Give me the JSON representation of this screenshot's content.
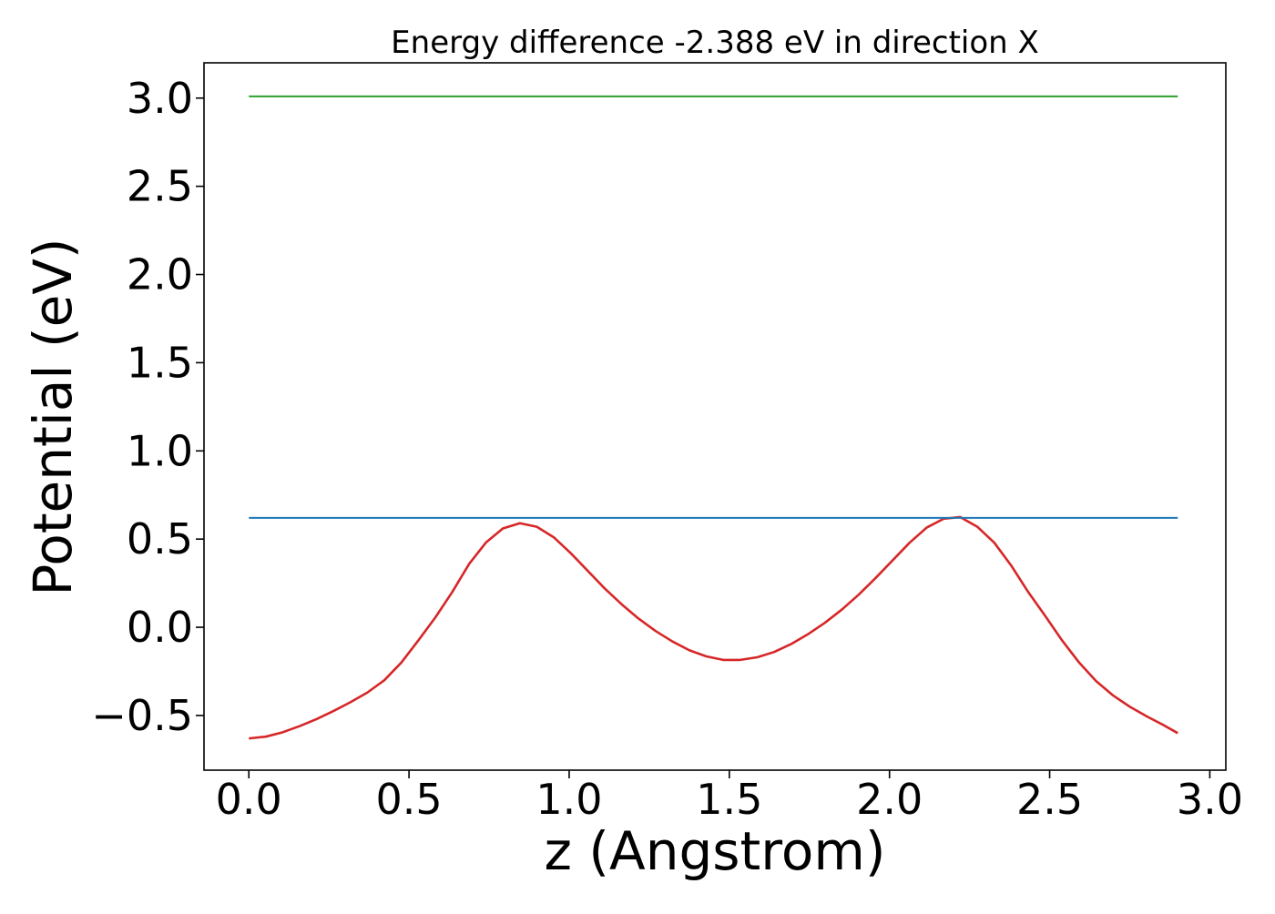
{
  "chart_data": {
    "type": "line",
    "title": "Energy difference -2.388 eV in direction X",
    "xlabel": "z (Angstrom)",
    "ylabel": "Potential (eV)",
    "xlim": [
      -0.14,
      3.05
    ],
    "ylim": [
      -0.81,
      3.2
    ],
    "xticks": [
      0.0,
      0.5,
      1.0,
      1.5,
      2.0,
      2.5,
      3.0
    ],
    "xtick_labels": [
      "0.0",
      "0.5",
      "1.0",
      "1.5",
      "2.0",
      "2.5",
      "3.0"
    ],
    "yticks": [
      -0.5,
      0.0,
      0.5,
      1.0,
      1.5,
      2.0,
      2.5,
      3.0
    ],
    "ytick_labels": [
      "−0.5",
      "0.0",
      "0.5",
      "1.0",
      "1.5",
      "2.0",
      "2.5",
      "3.0"
    ],
    "grid": false,
    "series": [
      {
        "color": "#d62728",
        "x": [
          0.0,
          0.053,
          0.106,
          0.159,
          0.212,
          0.264,
          0.317,
          0.37,
          0.423,
          0.476,
          0.529,
          0.582,
          0.635,
          0.688,
          0.74,
          0.793,
          0.846,
          0.899,
          0.952,
          1.005,
          1.058,
          1.111,
          1.164,
          1.216,
          1.269,
          1.322,
          1.375,
          1.428,
          1.481,
          1.534,
          1.587,
          1.64,
          1.693,
          1.745,
          1.798,
          1.851,
          1.904,
          1.957,
          2.01,
          2.063,
          2.116,
          2.169,
          2.221,
          2.274,
          2.327,
          2.38,
          2.433,
          2.486,
          2.539,
          2.592,
          2.645,
          2.697,
          2.75,
          2.803,
          2.856,
          2.9
        ],
        "y": [
          -0.63,
          -0.62,
          -0.595,
          -0.56,
          -0.52,
          -0.475,
          -0.425,
          -0.37,
          -0.3,
          -0.2,
          -0.075,
          0.055,
          0.2,
          0.36,
          0.48,
          0.56,
          0.59,
          0.57,
          0.51,
          0.42,
          0.32,
          0.22,
          0.13,
          0.05,
          -0.02,
          -0.08,
          -0.13,
          -0.165,
          -0.185,
          -0.185,
          -0.17,
          -0.14,
          -0.095,
          -0.04,
          0.025,
          0.1,
          0.185,
          0.28,
          0.38,
          0.48,
          0.565,
          0.615,
          0.625,
          0.57,
          0.48,
          0.35,
          0.2,
          0.065,
          -0.075,
          -0.2,
          -0.305,
          -0.385,
          -0.45,
          -0.505,
          -0.555,
          -0.6
        ]
      },
      {
        "color": "#1f77b4",
        "x": [
          0.0,
          2.9
        ],
        "y": [
          0.62,
          0.62
        ]
      },
      {
        "color": "#2ca02c",
        "x": [
          0.0,
          2.9
        ],
        "y": [
          3.01,
          3.01
        ]
      }
    ]
  }
}
